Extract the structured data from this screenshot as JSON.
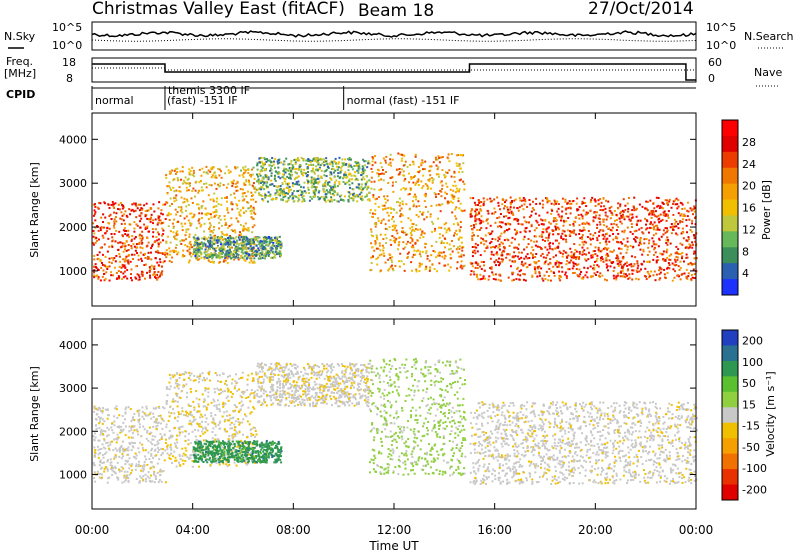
{
  "header": {
    "title": "Christmas Valley East (fitACF)",
    "beam": "Beam 18",
    "date": "27/Oct/2014"
  },
  "status_strip": {
    "nsky_label": "N.Sky",
    "nsky_ticks": [
      "10^5",
      "10^0"
    ],
    "nsearch_label": "N.Search",
    "nsearch_ticks": [
      "10^5",
      "10^0"
    ],
    "freq_label": [
      "Freq.",
      "[MHz]"
    ],
    "freq_ticks": [
      "18",
      "8"
    ],
    "nave_label": "Nave",
    "nave_ticks": [
      "60",
      "0"
    ],
    "cpid_label": "CPID",
    "cpid_segments": [
      {
        "start_h": 0.0,
        "end_h": 2.9,
        "text": "normal"
      },
      {
        "start_h": 2.9,
        "end_h": 10.0,
        "text": "themis 3300 IF",
        "text2": "(fast) -151 IF"
      },
      {
        "start_h": 10.0,
        "end_h": 24.0,
        "text": "normal (fast) -151 IF"
      }
    ]
  },
  "x_axis": {
    "label": "Time UT",
    "ticks": [
      "00:00",
      "04:00",
      "08:00",
      "12:00",
      "16:00",
      "20:00",
      "00:00"
    ],
    "tick_hours": [
      0,
      4,
      8,
      12,
      16,
      20,
      24
    ]
  },
  "power_panel": {
    "ylabel": "Slant Range [km]",
    "yticks": [
      "1000",
      "2000",
      "3000",
      "4000"
    ],
    "colorbar_label": "Power [dB]",
    "colorbar_ticks": [
      "4",
      "8",
      "12",
      "16",
      "20",
      "24",
      "28"
    ],
    "colors": [
      "#1e32ff",
      "#2b5fb0",
      "#3c8f5a",
      "#66b85a",
      "#bfc83c",
      "#f0c000",
      "#f5a000",
      "#f07800",
      "#ec3c00",
      "#e00000",
      "#ff0000"
    ]
  },
  "velocity_panel": {
    "ylabel": "Slant Range [km]",
    "yticks": [
      "1000",
      "2000",
      "3000",
      "4000"
    ],
    "colorbar_label": "Velocity [m s⁻¹]",
    "colorbar_ticks": [
      "200",
      "100",
      "50",
      "15",
      "-15",
      "-50",
      "-100",
      "-200"
    ],
    "colors": [
      "#2040c0",
      "#2a7090",
      "#2f9850",
      "#5ac030",
      "#90d040",
      "#c8c8c8",
      "#f0c000",
      "#f5a000",
      "#f07000",
      "#e83000",
      "#e00000"
    ]
  },
  "chart_data": {
    "type": "heatmap",
    "title": "Christmas Valley East (fitACF)",
    "xlabel": "Time UT",
    "ylabel": "Slant Range [km]",
    "xlim": [
      0,
      24
    ],
    "ylim": [
      200,
      4600
    ],
    "series": [
      {
        "name": "Power [dB]",
        "clim": [
          0,
          32
        ]
      },
      {
        "name": "Velocity [m s⁻¹]",
        "clim": [
          -250,
          250
        ]
      }
    ],
    "echo_regions": [
      {
        "t_start": 0.0,
        "t_end": 2.9,
        "range_low": 800,
        "range_high": 2600,
        "power_db": 26,
        "velocity": -5
      },
      {
        "t_start": 2.9,
        "t_end": 6.5,
        "range_low": 1200,
        "range_high": 3400,
        "power_db": 18,
        "velocity": -20
      },
      {
        "t_start": 6.5,
        "t_end": 11.0,
        "range_low": 2600,
        "range_high": 3600,
        "power_db": 10,
        "velocity": -10
      },
      {
        "t_start": 11.0,
        "t_end": 14.8,
        "range_low": 1000,
        "range_high": 3700,
        "power_db": 20,
        "velocity": 40
      },
      {
        "t_start": 4.0,
        "t_end": 7.5,
        "range_low": 1300,
        "range_high": 1800,
        "power_db": 8,
        "velocity": 150
      },
      {
        "t_start": 15.0,
        "t_end": 24.0,
        "range_low": 800,
        "range_high": 2700,
        "power_db": 26,
        "velocity": -5
      }
    ]
  }
}
